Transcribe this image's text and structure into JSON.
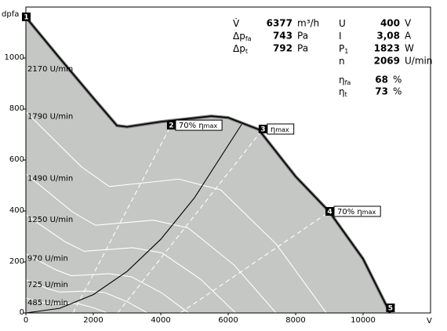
{
  "chart_data": {
    "type": "line",
    "x_label": "V",
    "y_label": "dpfa",
    "xlim": [
      0,
      12000
    ],
    "ylim": [
      0,
      1200
    ],
    "xticks": [
      0,
      2000,
      4000,
      6000,
      8000,
      10000
    ],
    "yticks": [
      0,
      200,
      400,
      600,
      800,
      1000
    ],
    "grid": false,
    "area_color": "#c4c7c3",
    "series": [
      {
        "name": "2170 U/min",
        "color": "#000000",
        "style": "bold",
        "x": [
          0,
          1000,
          2000,
          2700,
          3000,
          4000,
          5500,
          6000,
          6900,
          8000,
          9000,
          10000,
          10800
        ],
        "values": [
          1160,
          1000,
          843,
          735,
          730,
          750,
          772,
          766,
          720,
          535,
          397,
          212,
          0
        ]
      },
      {
        "name": "1790 U/min",
        "color": "#ffffff",
        "x": [
          0,
          1650,
          2475,
          4538,
          5775,
          7425,
          8910
        ],
        "values": [
          789,
          573,
          496,
          525,
          483,
          270,
          0
        ]
      },
      {
        "name": "1490 U/min",
        "color": "#ffffff",
        "x": [
          0,
          1374,
          2061,
          3779,
          4809,
          6183,
          7420
        ],
        "values": [
          546,
          397,
          344,
          364,
          334,
          187,
          0
        ]
      },
      {
        "name": "1250 U/min",
        "color": "#ffffff",
        "x": [
          0,
          1152,
          1728,
          3168,
          4032,
          5184,
          6221
        ],
        "values": [
          385,
          280,
          242,
          256,
          236,
          132,
          0
        ]
      },
      {
        "name": "970 U/min",
        "color": "#ffffff",
        "x": [
          0,
          894,
          1341,
          2459,
          3129,
          4023,
          4828
        ],
        "values": [
          232,
          169,
          146,
          154,
          142,
          79,
          0
        ]
      },
      {
        "name": "725 U/min",
        "color": "#ffffff",
        "x": [
          0,
          668,
          1002,
          1837,
          2338,
          3006,
          3607
        ],
        "values": [
          130,
          94,
          82,
          86,
          80,
          44,
          0
        ]
      },
      {
        "name": "485 U/min",
        "color": "#ffffff",
        "x": [
          0,
          447,
          671,
          1229,
          1565,
          2012,
          2414
        ],
        "values": [
          58,
          42,
          37,
          39,
          36,
          20,
          0
        ]
      },
      {
        "color": "#000000",
        "x": [
          0,
          1000,
          2000,
          3000,
          4000,
          5000,
          6400
        ],
        "values": [
          0,
          18,
          72,
          163,
          289,
          452,
          740
        ]
      },
      {
        "color": "#ffffff",
        "style": "dashed",
        "x": [
          1400,
          4300
        ],
        "values": [
          0,
          735
        ]
      },
      {
        "color": "#ffffff",
        "style": "dashed",
        "x": [
          2720,
          7020
        ],
        "values": [
          0,
          720
        ]
      },
      {
        "color": "#ffffff",
        "style": "dashed",
        "x": [
          4580,
          9000
        ],
        "values": [
          0,
          397
        ]
      }
    ],
    "markers": [
      {
        "label": "1",
        "x": 0,
        "y": 1160
      },
      {
        "label": "2",
        "x": 4300,
        "y": 735,
        "pre": "70%",
        "symbol": "η",
        "sub": "max"
      },
      {
        "label": "3",
        "x": 7020,
        "y": 720,
        "symbol": "η",
        "sub": "max"
      },
      {
        "label": "4",
        "x": 9000,
        "y": 397,
        "pre": "70%",
        "symbol": "η",
        "sub": "max"
      },
      {
        "label": "5",
        "x": 10800,
        "y": 0
      }
    ],
    "info": [
      {
        "symbol": "V̇",
        "value": 6377,
        "unit": "m³/h"
      },
      {
        "symbol": "Δp",
        "sub": "fa",
        "value": 743,
        "unit": "Pa"
      },
      {
        "symbol": "Δp",
        "sub": "t",
        "value": 792,
        "unit": "Pa"
      },
      {
        "symbol": "U",
        "value": 400,
        "unit": "V"
      },
      {
        "symbol": "I",
        "value": "3,08",
        "unit": "A"
      },
      {
        "symbol": "P",
        "sub": "1",
        "value": 1823,
        "unit": "W"
      },
      {
        "symbol": "n",
        "value": 2069,
        "unit": "U/min"
      },
      {
        "symbol": "η",
        "sub": "fa",
        "value": 68,
        "unit": "%"
      },
      {
        "symbol": "η",
        "sub": "t",
        "value": 73,
        "unit": "%"
      }
    ]
  }
}
